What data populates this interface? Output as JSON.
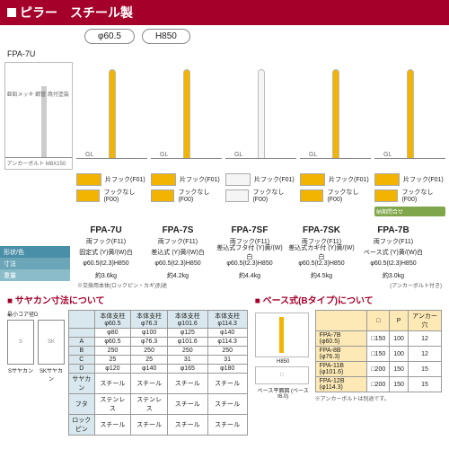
{
  "header": {
    "title": "ピラー　スチール製"
  },
  "specs": {
    "diameter": "φ60.5",
    "height": "H850"
  },
  "diagram_model": "FPA-7U",
  "products": [
    {
      "name": "FPA-7U",
      "sub": "両フック(F11)",
      "pole_color": "#f2b400",
      "pole_h": 100,
      "variants": [
        {
          "c": "#f2b400",
          "l": "片フック(F01)"
        },
        {
          "c": "#f2b400",
          "l": "フックなし(F00)"
        }
      ],
      "detail": "固定式"
    },
    {
      "name": "FPA-7S",
      "sub": "両フック(F11)",
      "pole_color": "#f2b400",
      "pole_h": 100,
      "variants": [
        {
          "c": "#f2b400",
          "l": "片フック(F01)"
        },
        {
          "c": "#f2b400",
          "l": "フックなし(F00)"
        }
      ],
      "detail": "差込式"
    },
    {
      "name": "FPA-7SF",
      "sub": "両フック(F11)",
      "pole_color": "#f5f5f5",
      "pole_h": 100,
      "variants": [
        {
          "c": "#f5f5f5",
          "l": "片フック(F01)"
        },
        {
          "c": "#f5f5f5",
          "l": "フックなし(F00)"
        }
      ],
      "detail": "差込式フタ付"
    },
    {
      "name": "FPA-7SK",
      "sub": "両フック(F11)",
      "pole_color": "#f2b400",
      "pole_h": 100,
      "variants": [
        {
          "c": "#f2b400",
          "l": "片フック(F01)"
        },
        {
          "c": "#f2b400",
          "l": "フックなし(F00)"
        }
      ],
      "detail": "差込式カギ付"
    },
    {
      "name": "FPA-7B",
      "sub": "両フック(F11)",
      "pole_color": "#f2b400",
      "pole_h": 100,
      "variants": [
        {
          "c": "#f2b400",
          "l": "片フック(F01)"
        },
        {
          "c": "#f2b400",
          "l": "フックなし(F00)"
        }
      ],
      "detail": "ベース式",
      "badge": "納期問合せ"
    }
  ],
  "spec_labels": [
    {
      "l": "形状/色",
      "c": "#4a8fa8"
    },
    {
      "l": "寸法",
      "c": "#6aa5b8"
    },
    {
      "l": "重量",
      "c": "#8abcc9"
    }
  ],
  "spec_data": [
    [
      "固定式 (Y)黄/(W)白",
      "差込式 (Y)黄/(W)白",
      "差込式フタ付 (Y)黄/(W)白",
      "差込式カギ付 (Y)黄/(W)白",
      "ベース式 (Y)黄/(W)白"
    ],
    [
      "φ60.5(t2.3)H850",
      "φ60.5(t2.3)H850",
      "φ60.5(t2.3)H850",
      "φ60.5(t2.3)H850",
      "φ60.5(t2.3)H850"
    ],
    [
      "約3.6kg",
      "約4.2kg",
      "約4.4kg",
      "約4.5kg",
      "約3.0kg"
    ]
  ],
  "spec_footnote_left": "※交換用本体(ロックピン・カギ)別途",
  "spec_footnote_right": "(アンカーボルト付き)",
  "diagram_notes": [
    "亜鉛メッキ 鋼管 焼付塗装",
    "アンカーボルト M8X150"
  ],
  "saya": {
    "title": "■ サヤカン寸法について",
    "core_label": "最小コア径D",
    "header": [
      "",
      "本体支柱 φ60.5",
      "本体支柱 φ76.3",
      "本体支柱 φ101.6",
      "本体支柱 φ114.3"
    ],
    "rows": [
      [
        "",
        "φ80",
        "φ100",
        "φ125",
        "φ140"
      ],
      [
        "A",
        "φ60.5",
        "φ76.3",
        "φ101.6",
        "φ114.3"
      ],
      [
        "B",
        "250",
        "250",
        "250",
        "250"
      ],
      [
        "C",
        "25",
        "25",
        "31",
        "31"
      ],
      [
        "D",
        "φ120",
        "φ140",
        "φ165",
        "φ180"
      ],
      [
        "サヤカン",
        "スチール",
        "スチール",
        "スチール",
        "スチール"
      ],
      [
        "フタ",
        "ステンレス",
        "ステンレス",
        "スチール",
        "スチール"
      ],
      [
        "ロックピン",
        "スチール",
        "スチール",
        "スチール",
        "スチール"
      ]
    ],
    "diag_labels": [
      "Sサヤカン",
      "SKサヤカン"
    ]
  },
  "base": {
    "title": "■ ベース式(Bタイプ)について",
    "header": [
      "",
      "□",
      "P",
      "アンカー穴"
    ],
    "rows": [
      [
        "FPA-7B (φ60.5)",
        "□150",
        "100",
        "12"
      ],
      [
        "FPA-8B (φ76.3)",
        "□150",
        "100",
        "12"
      ],
      [
        "FPA-11B (φ101.6)",
        "□200",
        "150",
        "15"
      ],
      [
        "FPA-12B (φ114.3)",
        "□200",
        "150",
        "15"
      ]
    ],
    "note": "※アンカーボルトは別途です。",
    "diag_labels": [
      "H850",
      "ベース平面図 (ベースt6.0)"
    ]
  }
}
